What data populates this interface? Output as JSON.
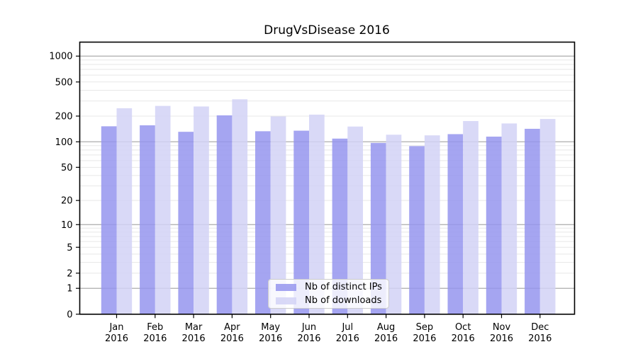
{
  "chart_data": {
    "type": "bar",
    "title": "DrugVsDisease 2016",
    "categories": [
      "Jan",
      "Feb",
      "Mar",
      "Apr",
      "May",
      "Jun",
      "Jul",
      "Aug",
      "Sep",
      "Oct",
      "Nov",
      "Dec"
    ],
    "x_year_sublabel": "2016",
    "series": [
      {
        "name": "Nb of distinct IPs",
        "color": "#9595ef",
        "values": [
          152,
          156,
          131,
          204,
          133,
          135,
          109,
          97,
          89,
          123,
          115,
          142
        ]
      },
      {
        "name": "Nb of downloads",
        "color": "#d2d2f6",
        "values": [
          247,
          263,
          259,
          314,
          198,
          208,
          151,
          121,
          119,
          175,
          164,
          185
        ]
      }
    ],
    "yticks": [
      0,
      1,
      2,
      5,
      10,
      20,
      50,
      100,
      200,
      500,
      1000
    ],
    "major_grid_values": [
      1,
      10,
      100,
      1000
    ],
    "scale": "log1p",
    "ylim": [
      0,
      1450
    ],
    "grid": "both",
    "legend_position": "lower-center",
    "bar_opacity": 0.85
  },
  "colors": {
    "background": "#ffffff",
    "spine": "#000000",
    "text": "#000000",
    "grid_major": "#ababab",
    "grid_minor": "#e7e7e7",
    "legend_border": "#cccccc"
  }
}
